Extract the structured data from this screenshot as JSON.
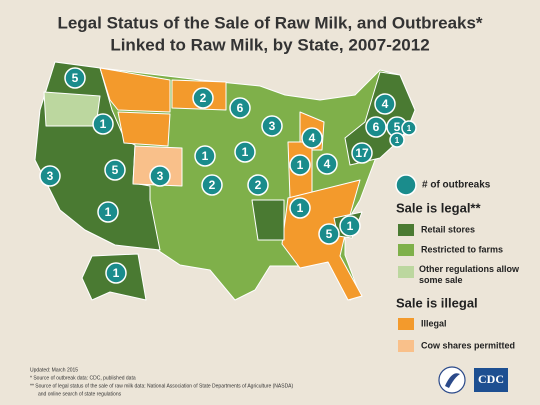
{
  "header": {
    "title_lines": [
      "Legal Status of the Sale of Raw Milk, and Outbreaks*",
      "Linked to Raw Milk, by State, 2007-2012"
    ]
  },
  "outbreaks": {
    "markers": [
      5,
      1,
      5,
      3,
      3,
      1,
      2,
      6,
      3,
      1,
      1,
      2,
      2,
      4,
      1,
      4,
      17,
      6,
      4,
      5,
      1,
      1,
      1,
      5,
      1,
      1
    ]
  },
  "legend": {
    "outbreaks_label": "# of outbreaks",
    "legal_heading": "Sale is legal**",
    "legal_items": [
      "Retail stores",
      "Restricted to farms",
      "Other regulations allow some sale"
    ],
    "illegal_heading": "Sale is illegal",
    "illegal_items": [
      "Illegal",
      "Cow shares permitted"
    ]
  },
  "footnotes": [
    "Updated: March 2015",
    "* Source of outbreak data: CDC, published data",
    "** Source of legal status of the sale of raw milk data: National Association of State Departments of Agriculture (NASDA)",
    "and  online search of state regulations"
  ],
  "logo": "CDC"
}
